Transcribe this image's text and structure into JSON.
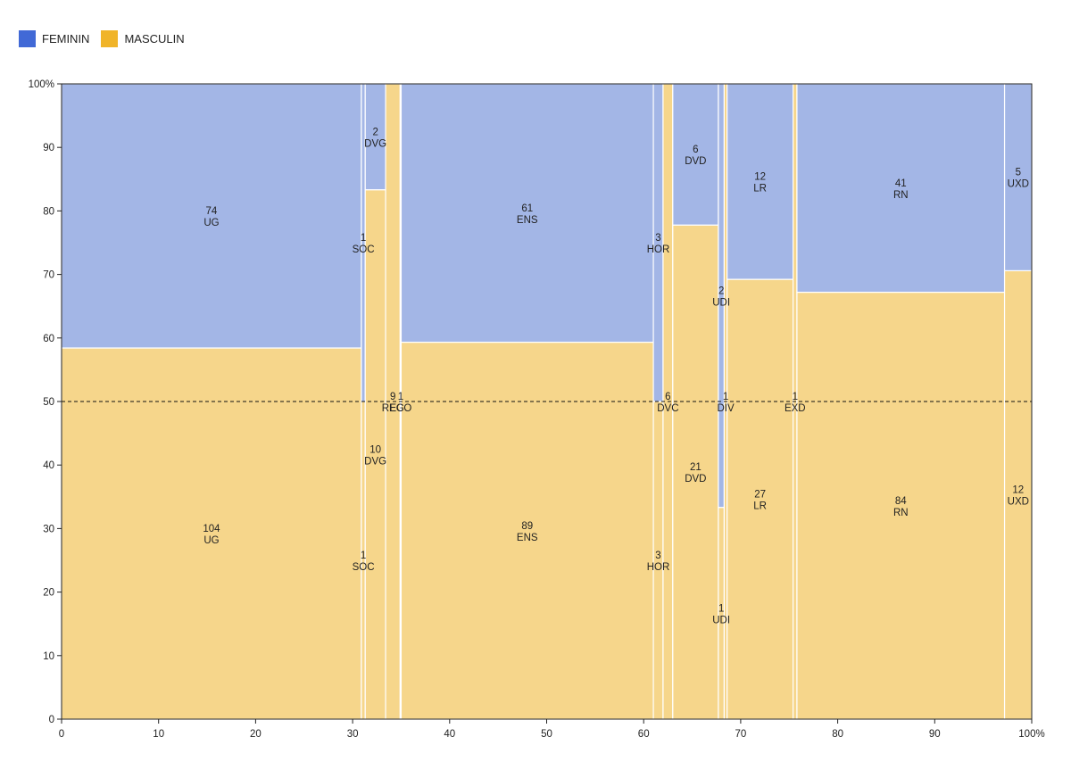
{
  "legend": [
    {
      "label": "FEMININ",
      "color": "#4169d6"
    },
    {
      "label": "MASCULIN",
      "color": "#f0b429"
    }
  ],
  "chart_data": {
    "type": "mosaic",
    "x_axis": {
      "min": 0,
      "max": 100,
      "ticks": [
        "0",
        "10",
        "20",
        "30",
        "40",
        "50",
        "60",
        "70",
        "80",
        "90",
        "100%"
      ]
    },
    "y_axis": {
      "min": 0,
      "max": 100,
      "ticks": [
        "0",
        "10",
        "20",
        "30",
        "40",
        "50",
        "60",
        "70",
        "80",
        "90",
        "100%"
      ]
    },
    "reference_line": {
      "y": 50,
      "style": "dashed"
    },
    "fill_colors": {
      "FEMININ": "#a3b6e6",
      "MASCULIN": "#f6d68b"
    },
    "columns": [
      {
        "code": "UG",
        "x0": 0,
        "x1": 30.9,
        "feminin": 74,
        "masculin": 104
      },
      {
        "code": "SOC",
        "x0": 30.9,
        "x1": 31.3,
        "feminin": 1,
        "masculin": 1
      },
      {
        "code": "DVG",
        "x0": 31.3,
        "x1": 33.4,
        "feminin": 2,
        "masculin": 10
      },
      {
        "code": "REG",
        "x0": 33.4,
        "x1": 34.9,
        "feminin": 0,
        "masculin": 9
      },
      {
        "code": "ECO",
        "x0": 34.9,
        "x1": 35.0,
        "feminin": 0,
        "masculin": 1
      },
      {
        "code": "ENS",
        "x0": 35.0,
        "x1": 61.0,
        "feminin": 61,
        "masculin": 89
      },
      {
        "code": "HOR",
        "x0": 61.0,
        "x1": 62.0,
        "feminin": 3,
        "masculin": 3
      },
      {
        "code": "DVC",
        "x0": 62.0,
        "x1": 63.0,
        "feminin": 0,
        "masculin": 6
      },
      {
        "code": "DVD",
        "x0": 63.0,
        "x1": 67.7,
        "feminin": 6,
        "masculin": 21
      },
      {
        "code": "UDI",
        "x0": 67.7,
        "x1": 68.3,
        "feminin": 2,
        "masculin": 1
      },
      {
        "code": "DIV",
        "x0": 68.3,
        "x1": 68.6,
        "feminin": 0,
        "masculin": 1
      },
      {
        "code": "LR",
        "x0": 68.6,
        "x1": 75.4,
        "feminin": 12,
        "masculin": 27
      },
      {
        "code": "EXD",
        "x0": 75.4,
        "x1": 75.8,
        "feminin": 0,
        "masculin": 1
      },
      {
        "code": "RN",
        "x0": 75.8,
        "x1": 97.2,
        "feminin": 41,
        "masculin": 84
      },
      {
        "code": "UXD",
        "x0": 97.2,
        "x1": 100,
        "feminin": 5,
        "masculin": 12
      }
    ]
  }
}
